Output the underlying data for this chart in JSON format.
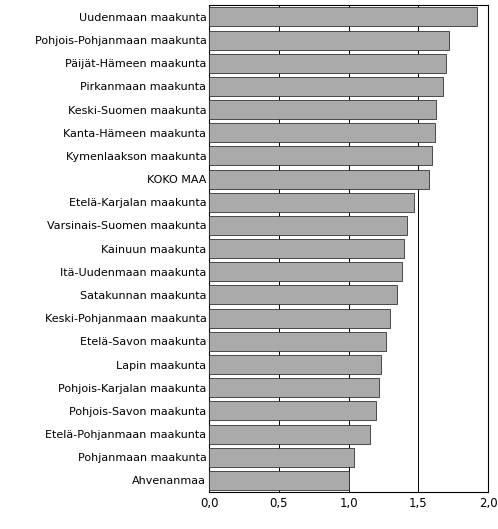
{
  "categories": [
    "Ahvenanmaa",
    "Pohjanmaan maakunta",
    "Etelä-Pohjanmaan maakunta",
    "Pohjois-Savon maakunta",
    "Pohjois-Karjalan maakunta",
    "Lapin maakunta",
    "Etelä-Savon maakunta",
    "Keski-Pohjanmaan maakunta",
    "Satakunnan maakunta",
    "Itä-Uudenmaan maakunta",
    "Kainuun maakunta",
    "Varsinais-Suomen maakunta",
    "Etelä-Karjalan maakunta",
    "KOKO MAA",
    "Kymenlaakson maakunta",
    "Kanta-Hämeen maakunta",
    "Keski-Suomen maakunta",
    "Pirkanmaan maakunta",
    "Päijät-Hämeen maakunta",
    "Pohjois-Pohjanmaan maakunta",
    "Uudenmaan maakunta"
  ],
  "values": [
    1.0,
    1.04,
    1.15,
    1.2,
    1.22,
    1.23,
    1.27,
    1.3,
    1.35,
    1.38,
    1.4,
    1.42,
    1.47,
    1.58,
    1.6,
    1.62,
    1.63,
    1.68,
    1.7,
    1.72,
    1.92
  ],
  "bar_color": "#aaaaaa",
  "bar_edgecolor": "#333333",
  "background_color": "#ffffff",
  "xlim": [
    0,
    2.0
  ],
  "xticks": [
    0.0,
    0.5,
    1.0,
    1.5,
    2.0
  ],
  "xticklabels": [
    "0,0",
    "0,5",
    "1,0",
    "1,5",
    "2,0"
  ],
  "grid_color": "#000000",
  "grid_linewidth": 0.7,
  "bar_height": 0.82,
  "label_fontsize": 8.0,
  "tick_fontsize": 8.5
}
